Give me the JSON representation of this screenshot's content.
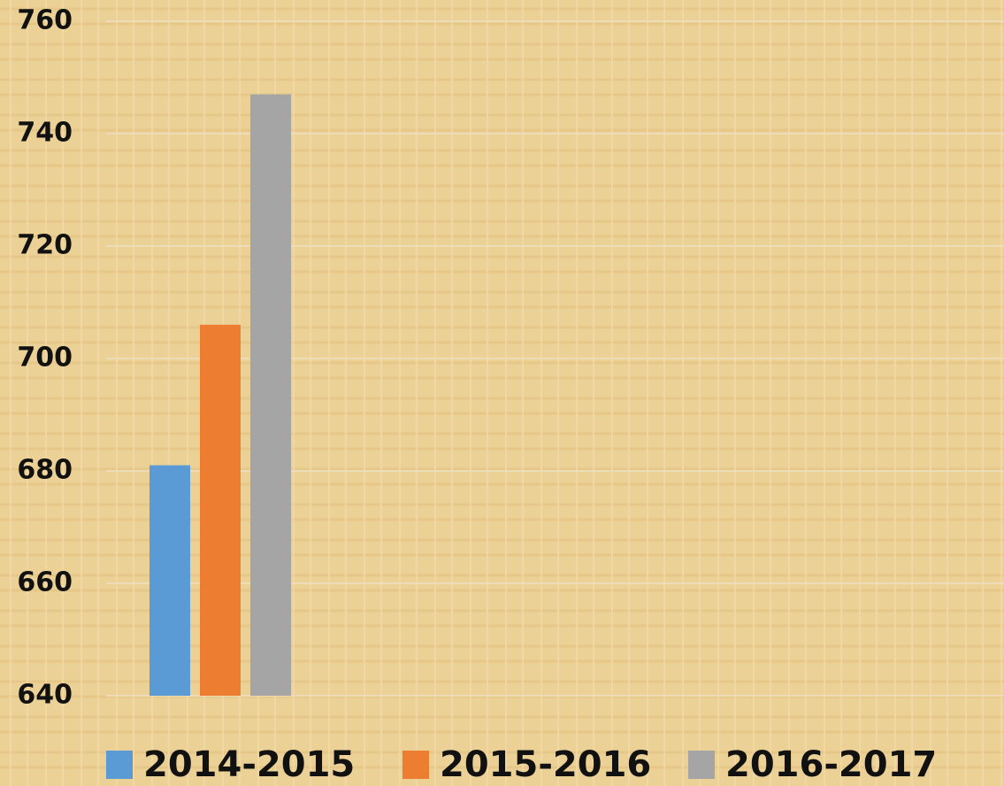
{
  "chart_data": {
    "type": "bar",
    "categories": [
      null
    ],
    "series": [
      {
        "name": "2014-2015",
        "color": "#5b9bd5",
        "values": [
          681
        ]
      },
      {
        "name": "2015-2016",
        "color": "#ed7d31",
        "values": [
          706
        ]
      },
      {
        "name": "2016-2017",
        "color": "#a5a5a5",
        "values": [
          747
        ]
      }
    ],
    "ylim": [
      640,
      760
    ],
    "yticks": [
      640,
      660,
      680,
      700,
      720,
      740,
      760
    ],
    "grid": true,
    "legend": "bottom"
  }
}
